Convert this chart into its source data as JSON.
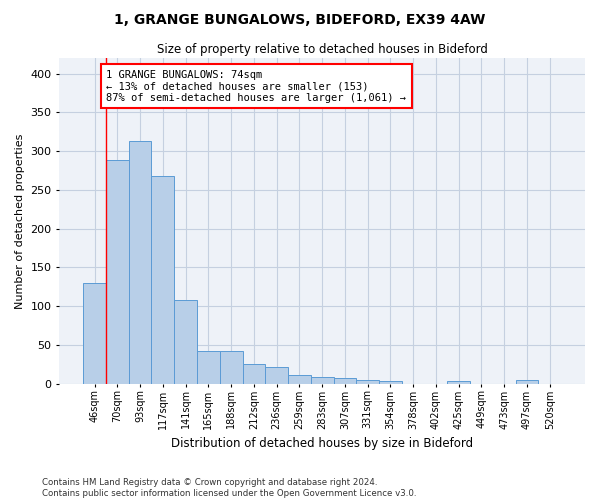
{
  "title": "1, GRANGE BUNGALOWS, BIDEFORD, EX39 4AW",
  "subtitle": "Size of property relative to detached houses in Bideford",
  "xlabel": "Distribution of detached houses by size in Bideford",
  "ylabel": "Number of detached properties",
  "bar_color": "#b8cfe8",
  "bar_edge_color": "#5b9bd5",
  "categories": [
    "46sqm",
    "70sqm",
    "93sqm",
    "117sqm",
    "141sqm",
    "165sqm",
    "188sqm",
    "212sqm",
    "236sqm",
    "259sqm",
    "283sqm",
    "307sqm",
    "331sqm",
    "354sqm",
    "378sqm",
    "402sqm",
    "425sqm",
    "449sqm",
    "473sqm",
    "497sqm",
    "520sqm"
  ],
  "values": [
    130,
    288,
    313,
    268,
    108,
    42,
    42,
    25,
    22,
    11,
    9,
    7,
    5,
    4,
    0,
    0,
    4,
    0,
    0,
    5,
    0
  ],
  "ylim": [
    0,
    420
  ],
  "yticks": [
    0,
    50,
    100,
    150,
    200,
    250,
    300,
    350,
    400
  ],
  "property_line_x": 0.5,
  "annotation_text": "1 GRANGE BUNGALOWS: 74sqm\n← 13% of detached houses are smaller (153)\n87% of semi-detached houses are larger (1,061) →",
  "annotation_box_color": "white",
  "annotation_box_edge_color": "red",
  "footer": "Contains HM Land Registry data © Crown copyright and database right 2024.\nContains public sector information licensed under the Open Government Licence v3.0.",
  "background_color": "#eef2f8",
  "grid_color": "#c5d0e0"
}
